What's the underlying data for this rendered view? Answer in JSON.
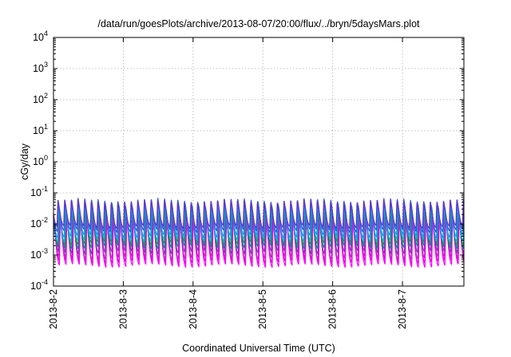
{
  "chart_data": {
    "type": "line",
    "title": "/data/run/goesPlots/archive/2013-08-07/20:00/flux/../bryn/5daysMars.plot",
    "xlabel": "Coordinated Universal Time (UTC)",
    "ylabel": "cGy/day",
    "yscale": "log",
    "ylim": [
      0.0001,
      10000
    ],
    "xlim": [
      0,
      5.88
    ],
    "x_ticks": [
      {
        "value": 0,
        "label": "2013-8-2"
      },
      {
        "value": 1,
        "label": "2013-8-3"
      },
      {
        "value": 2,
        "label": "2013-8-4"
      },
      {
        "value": 3,
        "label": "2013-8-5"
      },
      {
        "value": 4,
        "label": "2013-8-6"
      },
      {
        "value": 5,
        "label": "2013-8-7"
      }
    ],
    "y_ticks": [
      {
        "exp": "-4"
      },
      {
        "exp": "-3"
      },
      {
        "exp": "-2"
      },
      {
        "exp": "-1"
      },
      {
        "exp": "0"
      },
      {
        "exp": "1"
      },
      {
        "exp": "2"
      },
      {
        "exp": "3"
      },
      {
        "exp": "4"
      }
    ],
    "tick_base": "10",
    "grid": true,
    "cycles_per_day": 10.5,
    "series": [
      {
        "color": "#ff00ff",
        "peak": 0.014,
        "trough": 0.00045,
        "phase": 0.1
      },
      {
        "color": "#ee00ee",
        "peak": 0.018,
        "trough": 0.0006,
        "phase": 0.14
      },
      {
        "color": "#cc22cc",
        "peak": 0.022,
        "trough": 0.0008,
        "phase": 0.18
      },
      {
        "color": "#8833bb",
        "peak": 0.03,
        "trough": 0.0012,
        "phase": 0.22
      },
      {
        "color": "#008b8b",
        "peak": 0.035,
        "trough": 0.0018,
        "phase": 0.26
      },
      {
        "color": "#2e8b57",
        "peak": 0.04,
        "trough": 0.0024,
        "phase": 0.3
      },
      {
        "color": "#00bcd4",
        "peak": 0.045,
        "trough": 0.003,
        "phase": 0.34
      },
      {
        "color": "#1e90ff",
        "peak": 0.05,
        "trough": 0.004,
        "phase": 0.38
      },
      {
        "color": "#3355dd",
        "peak": 0.06,
        "trough": 0.006,
        "phase": 0.42
      },
      {
        "color": "#6633cc",
        "peak": 0.055,
        "trough": 0.008,
        "phase": 0.46
      }
    ]
  }
}
